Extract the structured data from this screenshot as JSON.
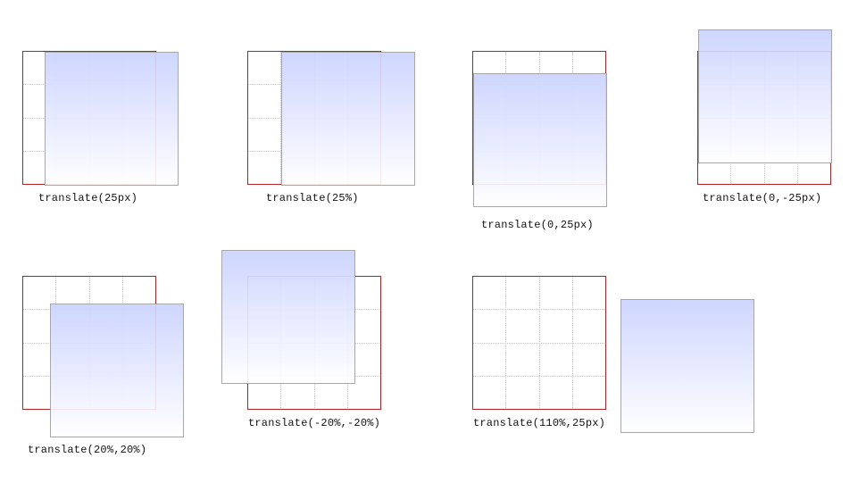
{
  "colors": {
    "frame": "#b22222",
    "grid": "#c8c8c8",
    "box_top": "#cbd3ff",
    "box_bottom": "#ffffff",
    "box_border": "#a0a0a0"
  },
  "demos": [
    {
      "label": "translate(25px)"
    },
    {
      "label": "translate(25%)"
    },
    {
      "label": "translate(0,25px)"
    },
    {
      "label": "translate(0,-25px)"
    },
    {
      "label": "translate(20%,20%)"
    },
    {
      "label": "translate(-20%,-20%)"
    },
    {
      "label": "translate(110%,25px)"
    }
  ]
}
